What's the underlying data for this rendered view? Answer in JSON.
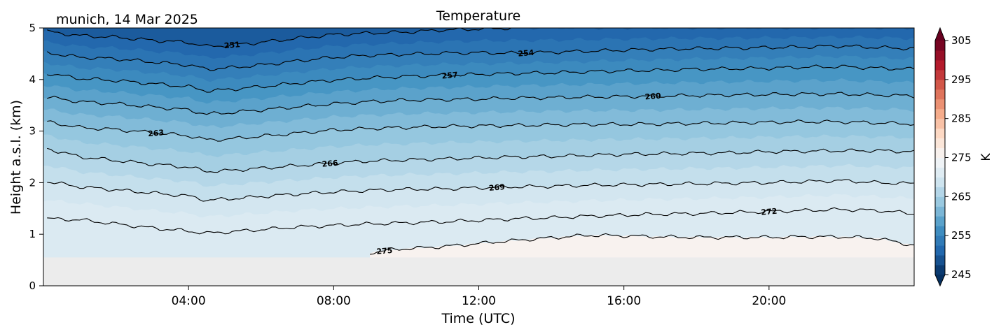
{
  "location_label": "munich, 14 Mar 2025",
  "chart_data": {
    "type": "heatmap",
    "title": "Temperature",
    "xlabel": "Time (UTC)",
    "ylabel": "Height a.s.l. (km)",
    "x_range": [
      0,
      24
    ],
    "xlim_hours": [
      0,
      24
    ],
    "x_ticks": [
      {
        "hour": 4,
        "label": "04:00"
      },
      {
        "hour": 8,
        "label": "08:00"
      },
      {
        "hour": 12,
        "label": "12:00"
      },
      {
        "hour": 16,
        "label": "16:00"
      },
      {
        "hour": 20,
        "label": "20:00"
      }
    ],
    "ylim_km": [
      0,
      5
    ],
    "y_ticks": [
      0,
      1,
      2,
      3,
      4,
      5
    ],
    "ground_height_km": 0.55,
    "colorbar": {
      "label": "K",
      "range": [
        245,
        305
      ],
      "ticks": [
        245,
        255,
        265,
        275,
        285,
        295,
        305
      ],
      "extend": "both",
      "level_step": 2.5
    },
    "contour_lines": [
      {
        "level": 251,
        "label": "251",
        "label_at_hour": 5.2
      },
      {
        "level": 254,
        "label": "254",
        "label_at_hour": 13.3
      },
      {
        "level": 257,
        "label": "257",
        "label_at_hour": 11.2
      },
      {
        "level": 260,
        "label": "260",
        "label_at_hour": 16.8
      },
      {
        "level": 263,
        "label": "263",
        "label_at_hour": 3.1
      },
      {
        "level": 266,
        "label": "266",
        "label_at_hour": 7.9
      },
      {
        "level": 269,
        "label": "269",
        "label_at_hour": 12.5
      },
      {
        "level": 272,
        "label": "272",
        "label_at_hour": 20.0
      },
      {
        "level": 275,
        "label": "275",
        "label_at_hour": 9.4
      }
    ],
    "isotherm_height_km": [
      {
        "level": 251,
        "points": [
          [
            0.1,
            4.93
          ],
          [
            1.0,
            4.85
          ],
          [
            2.0,
            4.82
          ],
          [
            3.0,
            4.76
          ],
          [
            4.0,
            4.72
          ],
          [
            4.5,
            4.64
          ],
          [
            5.0,
            4.66
          ],
          [
            6.0,
            4.72
          ],
          [
            7.0,
            4.8
          ],
          [
            8.0,
            4.87
          ],
          [
            9.0,
            4.9
          ],
          [
            10.0,
            4.92
          ],
          [
            11.0,
            4.96
          ],
          [
            12.0,
            4.98
          ],
          [
            13.0,
            5.0
          ]
        ]
      },
      {
        "level": 254,
        "points": [
          [
            0.1,
            4.52
          ],
          [
            1.0,
            4.43
          ],
          [
            2.0,
            4.4
          ],
          [
            3.0,
            4.34
          ],
          [
            4.0,
            4.28
          ],
          [
            4.5,
            4.2
          ],
          [
            5.0,
            4.22
          ],
          [
            6.0,
            4.28
          ],
          [
            7.0,
            4.36
          ],
          [
            8.0,
            4.43
          ],
          [
            9.0,
            4.47
          ],
          [
            10.0,
            4.49
          ],
          [
            11.0,
            4.51
          ],
          [
            12.0,
            4.52
          ],
          [
            13.0,
            4.51
          ],
          [
            14.0,
            4.53
          ],
          [
            15.0,
            4.55
          ],
          [
            16.0,
            4.57
          ],
          [
            17.0,
            4.59
          ],
          [
            18.0,
            4.6
          ],
          [
            19.0,
            4.61
          ],
          [
            20.0,
            4.62
          ],
          [
            21.0,
            4.63
          ],
          [
            22.0,
            4.65
          ],
          [
            23.0,
            4.62
          ],
          [
            24.0,
            4.6
          ]
        ]
      },
      {
        "level": 257,
        "points": [
          [
            0.1,
            4.12
          ],
          [
            1.0,
            4.02
          ],
          [
            2.0,
            3.98
          ],
          [
            3.0,
            3.92
          ],
          [
            4.0,
            3.86
          ],
          [
            4.5,
            3.78
          ],
          [
            5.0,
            3.8
          ],
          [
            6.0,
            3.86
          ],
          [
            7.0,
            3.93
          ],
          [
            8.0,
            3.99
          ],
          [
            9.0,
            4.03
          ],
          [
            10.0,
            4.06
          ],
          [
            11.0,
            4.08
          ],
          [
            12.0,
            4.1
          ],
          [
            13.0,
            4.12
          ],
          [
            14.0,
            4.13
          ],
          [
            15.0,
            4.15
          ],
          [
            16.0,
            4.17
          ],
          [
            17.0,
            4.18
          ],
          [
            18.0,
            4.2
          ],
          [
            19.0,
            4.21
          ],
          [
            20.0,
            4.22
          ],
          [
            21.0,
            4.24
          ],
          [
            22.0,
            4.25
          ],
          [
            23.0,
            4.22
          ],
          [
            24.0,
            4.2
          ]
        ]
      },
      {
        "level": 260,
        "points": [
          [
            0.1,
            3.66
          ],
          [
            1.0,
            3.57
          ],
          [
            2.0,
            3.53
          ],
          [
            3.0,
            3.47
          ],
          [
            4.0,
            3.41
          ],
          [
            4.5,
            3.33
          ],
          [
            5.0,
            3.35
          ],
          [
            6.0,
            3.41
          ],
          [
            7.0,
            3.47
          ],
          [
            8.0,
            3.53
          ],
          [
            9.0,
            3.57
          ],
          [
            10.0,
            3.6
          ],
          [
            11.0,
            3.61
          ],
          [
            12.0,
            3.62
          ],
          [
            13.0,
            3.64
          ],
          [
            14.0,
            3.65
          ],
          [
            15.0,
            3.66
          ],
          [
            16.0,
            3.67
          ],
          [
            17.0,
            3.68
          ],
          [
            18.0,
            3.69
          ],
          [
            19.0,
            3.7
          ],
          [
            20.0,
            3.71
          ],
          [
            21.0,
            3.72
          ],
          [
            22.0,
            3.72
          ],
          [
            23.0,
            3.7
          ],
          [
            24.0,
            3.68
          ]
        ]
      },
      {
        "level": 263,
        "points": [
          [
            0.1,
            3.18
          ],
          [
            1.0,
            3.07
          ],
          [
            2.0,
            3.03
          ],
          [
            3.0,
            2.97
          ],
          [
            4.0,
            2.91
          ],
          [
            4.5,
            2.83
          ],
          [
            5.0,
            2.84
          ],
          [
            6.0,
            2.9
          ],
          [
            7.0,
            2.96
          ],
          [
            8.0,
            3.02
          ],
          [
            9.0,
            3.05
          ],
          [
            10.0,
            3.07
          ],
          [
            11.0,
            3.09
          ],
          [
            12.0,
            3.1
          ],
          [
            13.0,
            3.11
          ],
          [
            14.0,
            3.12
          ],
          [
            15.0,
            3.13
          ],
          [
            16.0,
            3.13
          ],
          [
            17.0,
            3.14
          ],
          [
            18.0,
            3.15
          ],
          [
            19.0,
            3.16
          ],
          [
            20.0,
            3.17
          ],
          [
            21.0,
            3.18
          ],
          [
            22.0,
            3.18
          ],
          [
            23.0,
            3.16
          ],
          [
            24.0,
            3.14
          ]
        ]
      },
      {
        "level": 266,
        "points": [
          [
            0.1,
            2.66
          ],
          [
            1.0,
            2.5
          ],
          [
            2.0,
            2.43
          ],
          [
            3.0,
            2.36
          ],
          [
            4.0,
            2.3
          ],
          [
            4.5,
            2.22
          ],
          [
            5.0,
            2.23
          ],
          [
            6.0,
            2.28
          ],
          [
            7.0,
            2.33
          ],
          [
            8.0,
            2.38
          ],
          [
            9.0,
            2.42
          ],
          [
            10.0,
            2.44
          ],
          [
            11.0,
            2.46
          ],
          [
            12.0,
            2.48
          ],
          [
            13.0,
            2.5
          ],
          [
            14.0,
            2.51
          ],
          [
            15.0,
            2.53
          ],
          [
            16.0,
            2.55
          ],
          [
            17.0,
            2.56
          ],
          [
            18.0,
            2.57
          ],
          [
            19.0,
            2.58
          ],
          [
            20.0,
            2.6
          ],
          [
            21.0,
            2.61
          ],
          [
            22.0,
            2.62
          ],
          [
            23.0,
            2.62
          ],
          [
            24.0,
            2.6
          ]
        ]
      },
      {
        "level": 269,
        "points": [
          [
            0.1,
            2.02
          ],
          [
            1.0,
            1.92
          ],
          [
            2.0,
            1.86
          ],
          [
            3.0,
            1.8
          ],
          [
            4.0,
            1.74
          ],
          [
            4.5,
            1.66
          ],
          [
            5.0,
            1.68
          ],
          [
            6.0,
            1.73
          ],
          [
            7.0,
            1.78
          ],
          [
            8.0,
            1.82
          ],
          [
            9.0,
            1.85
          ],
          [
            10.0,
            1.87
          ],
          [
            11.0,
            1.88
          ],
          [
            12.0,
            1.9
          ],
          [
            13.0,
            1.92
          ],
          [
            14.0,
            1.93
          ],
          [
            15.0,
            1.95
          ],
          [
            16.0,
            1.96
          ],
          [
            17.0,
            1.97
          ],
          [
            18.0,
            1.98
          ],
          [
            19.0,
            1.99
          ],
          [
            20.0,
            2.0
          ],
          [
            21.0,
            2.02
          ],
          [
            22.0,
            2.04
          ],
          [
            23.0,
            2.0
          ],
          [
            24.0,
            1.98
          ]
        ]
      },
      {
        "level": 272,
        "points": [
          [
            0.1,
            1.3
          ],
          [
            1.0,
            1.28
          ],
          [
            2.0,
            1.2
          ],
          [
            3.0,
            1.12
          ],
          [
            4.0,
            1.06
          ],
          [
            4.5,
            1.02
          ],
          [
            5.0,
            1.04
          ],
          [
            6.0,
            1.09
          ],
          [
            7.0,
            1.14
          ],
          [
            8.0,
            1.17
          ],
          [
            9.0,
            1.2
          ],
          [
            10.0,
            1.22
          ],
          [
            11.0,
            1.24
          ],
          [
            12.0,
            1.27
          ],
          [
            13.0,
            1.3
          ],
          [
            14.0,
            1.32
          ],
          [
            15.0,
            1.35
          ],
          [
            16.0,
            1.37
          ],
          [
            17.0,
            1.39
          ],
          [
            18.0,
            1.4
          ],
          [
            19.0,
            1.42
          ],
          [
            20.0,
            1.44
          ],
          [
            21.0,
            1.46
          ],
          [
            22.0,
            1.48
          ],
          [
            23.0,
            1.46
          ],
          [
            24.0,
            1.4
          ]
        ]
      },
      {
        "level": 275,
        "points": [
          [
            9.0,
            0.64
          ],
          [
            9.6,
            0.7
          ],
          [
            10.0,
            0.72
          ],
          [
            11.0,
            0.76
          ],
          [
            12.0,
            0.82
          ],
          [
            13.0,
            0.88
          ],
          [
            14.0,
            0.93
          ],
          [
            15.0,
            0.98
          ],
          [
            16.0,
            0.97
          ],
          [
            17.0,
            0.95
          ],
          [
            18.0,
            0.94
          ],
          [
            19.0,
            0.94
          ],
          [
            20.0,
            0.94
          ],
          [
            21.0,
            0.95
          ],
          [
            22.0,
            0.95
          ],
          [
            23.0,
            0.92
          ],
          [
            24.0,
            0.78
          ]
        ]
      }
    ]
  }
}
